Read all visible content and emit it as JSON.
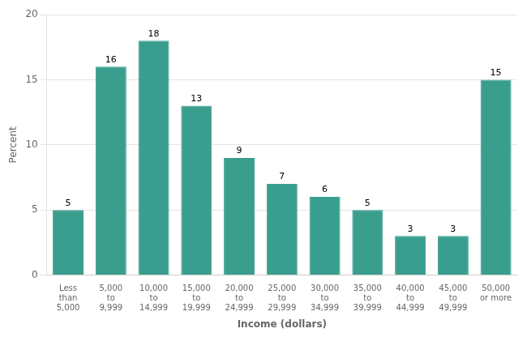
{
  "chart_data": {
    "type": "bar",
    "categories": [
      "Less\nthan\n5,000",
      "5,000\nto\n9,999",
      "10,000\nto\n14,999",
      "15,000\nto\n19,999",
      "20,000\nto\n24,999",
      "25,000\nto\n29,999",
      "30,000\nto\n34,999",
      "35,000\nto\n39,999",
      "40,000\nto\n44,999",
      "45,000\nto\n49,999",
      "50,000\nor more"
    ],
    "values": [
      5,
      16,
      18,
      13,
      9,
      7,
      6,
      5,
      3,
      3,
      15
    ],
    "color": "#3a9e8e",
    "xlabel": "Income (dollars)",
    "ylabel": "Percent",
    "ylim": [
      0,
      20
    ],
    "yticks": [
      0,
      5,
      10,
      15,
      20
    ],
    "grid": true,
    "data_labels": true
  }
}
